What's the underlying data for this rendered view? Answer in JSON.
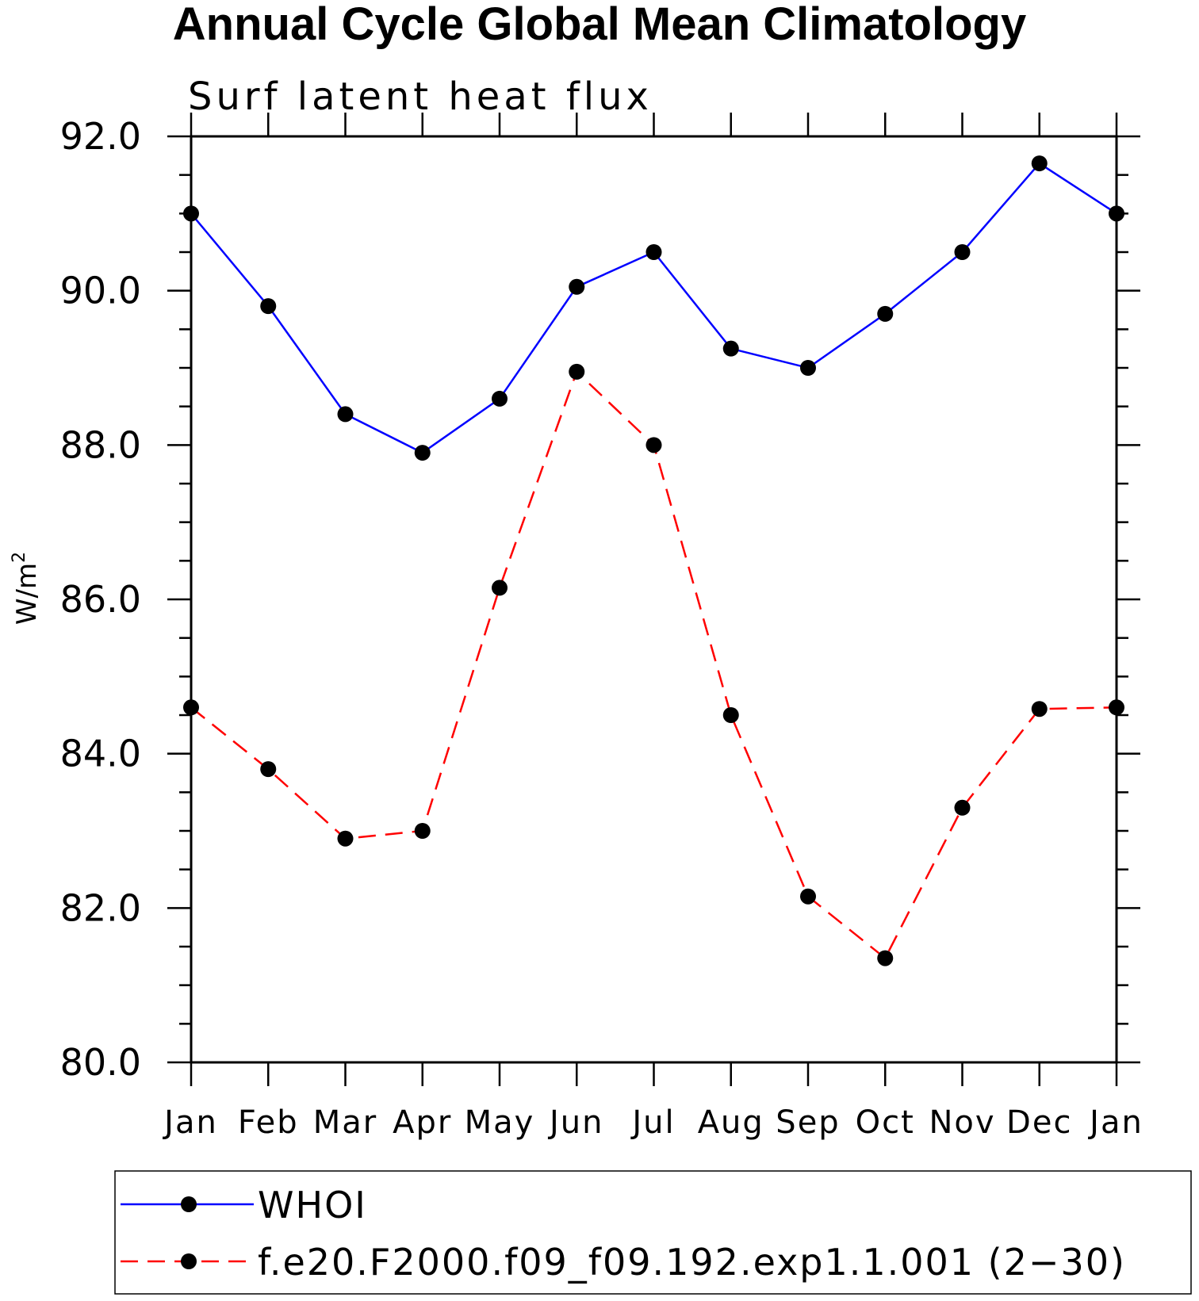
{
  "chart_data": {
    "type": "line",
    "title": "Annual Cycle Global Mean Climatology",
    "subtitle": "Surf latent heat flux",
    "ylabel": "W/m",
    "ylabel_superscript": "2",
    "ylim": [
      80.0,
      92.0
    ],
    "yticks": [
      "80.0",
      "82.0",
      "84.0",
      "86.0",
      "88.0",
      "90.0",
      "92.0"
    ],
    "categories": [
      "Jan",
      "Feb",
      "Mar",
      "Apr",
      "May",
      "Jun",
      "Jul",
      "Aug",
      "Sep",
      "Oct",
      "Nov",
      "Dec",
      "Jan"
    ],
    "grid": false,
    "legend_position": "bottom",
    "series": [
      {
        "name": "WHOI",
        "color": "#0000ff",
        "dash": "solid",
        "values": [
          91.0,
          89.8,
          88.4,
          87.9,
          88.6,
          90.05,
          90.5,
          89.25,
          89.0,
          89.7,
          90.5,
          91.65,
          91.0
        ]
      },
      {
        "name": "f.e20.F2000.f09_f09.192.exp1.1.001 (2−30)",
        "color": "#ff0000",
        "dash": "dashed",
        "values": [
          84.6,
          83.8,
          82.9,
          83.0,
          86.15,
          88.95,
          88.0,
          84.5,
          82.15,
          81.35,
          83.3,
          84.58,
          84.6
        ]
      }
    ]
  }
}
